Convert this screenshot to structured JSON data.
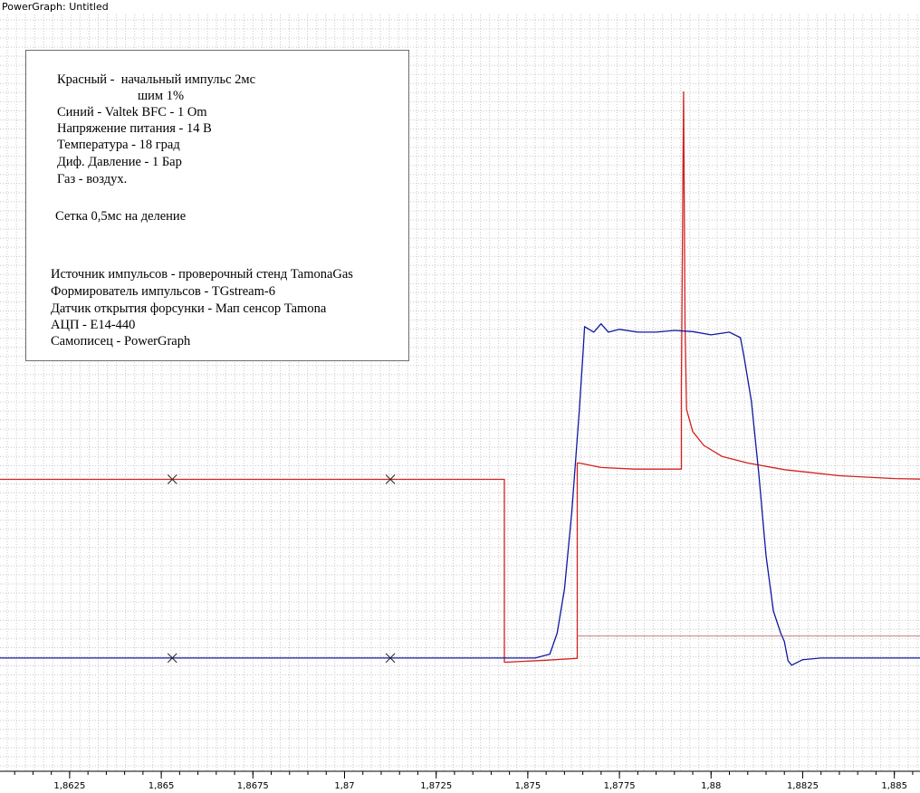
{
  "window": {
    "title": "PowerGraph: Untitled"
  },
  "notes": {
    "lines": [
      "Красный -  начальный импульс 2мс",
      "шим 1%",
      "Синий - Valtek BFC - 1 Om",
      "Напряжение питания - 14 В",
      "Температура - 18 град",
      "Диф. Давление - 1 Бар",
      "Газ - воздух.",
      "Сетка 0,5мс на деление",
      "Источник импульсов - проверочный стенд TamonaGas",
      "Формирователь импульсов - TGstream-6",
      "Датчик открытия форсунки - Мап сенсор Tamona",
      "АЦП - E14-440",
      "Самописец - PowerGraph"
    ]
  },
  "chart_data": {
    "type": "line",
    "title": "",
    "xlabel": "",
    "ylabel": "",
    "xlim": [
      1.8606,
      1.8857
    ],
    "ylim": [
      -0.37,
      1.0
    ],
    "grid": true,
    "x_tick_values": [
      1.8625,
      1.865,
      1.8675,
      1.87,
      1.8725,
      1.875,
      1.8775,
      1.88,
      1.8825,
      1.885
    ],
    "x_tick_labels": [
      "1,8625",
      "1,865",
      "1,8675",
      "1,87",
      "1,8725",
      "1,875",
      "1,8775",
      "1,88",
      "1,8825",
      "1,885"
    ],
    "series": [
      {
        "color": "#d42020",
        "points": [
          [
            1.8606,
            0.1585
          ],
          [
            1.87436,
            0.1585
          ],
          [
            1.87436,
            -0.1725
          ],
          [
            1.87441,
            -0.1725
          ],
          [
            1.8755,
            -0.169
          ],
          [
            1.87635,
            -0.1655
          ],
          [
            1.87635,
            0.188
          ],
          [
            1.8764,
            0.188
          ],
          [
            1.877,
            0.18
          ],
          [
            1.8779,
            0.177
          ],
          [
            1.87919,
            0.177
          ],
          [
            1.87919,
            0.33
          ],
          [
            1.87925,
            0.86
          ],
          [
            1.87929,
            0.44
          ],
          [
            1.87933,
            0.285
          ],
          [
            1.8795,
            0.245
          ],
          [
            1.8798,
            0.22
          ],
          [
            1.8803,
            0.2
          ],
          [
            1.881,
            0.188
          ],
          [
            1.882,
            0.176
          ],
          [
            1.8835,
            0.165
          ],
          [
            1.885,
            0.16
          ],
          [
            1.8857,
            0.159
          ]
        ],
        "markers": [
          [
            1.8653,
            0.1585
          ],
          [
            1.87125,
            0.1585
          ]
        ]
      },
      {
        "color": "#1018a0",
        "points": [
          [
            1.8606,
            -0.165
          ],
          [
            1.8745,
            -0.165
          ],
          [
            1.8752,
            -0.165
          ],
          [
            1.8756,
            -0.158
          ],
          [
            1.8758,
            -0.12
          ],
          [
            1.876,
            -0.04
          ],
          [
            1.8762,
            0.1
          ],
          [
            1.8764,
            0.28
          ],
          [
            1.8765,
            0.38
          ],
          [
            1.87655,
            0.435
          ],
          [
            1.8768,
            0.425
          ],
          [
            1.877,
            0.44
          ],
          [
            1.8772,
            0.425
          ],
          [
            1.8775,
            0.43
          ],
          [
            1.878,
            0.425
          ],
          [
            1.8785,
            0.425
          ],
          [
            1.879,
            0.428
          ],
          [
            1.8795,
            0.426
          ],
          [
            1.88,
            0.42
          ],
          [
            1.8805,
            0.425
          ],
          [
            1.8808,
            0.415
          ],
          [
            1.8809,
            0.38
          ],
          [
            1.8811,
            0.3
          ],
          [
            1.8813,
            0.17
          ],
          [
            1.8815,
            0.02
          ],
          [
            1.8817,
            -0.08
          ],
          [
            1.8819,
            -0.12
          ],
          [
            1.882,
            -0.135
          ],
          [
            1.8821,
            -0.17
          ],
          [
            1.8822,
            -0.178
          ],
          [
            1.8825,
            -0.168
          ],
          [
            1.883,
            -0.165
          ],
          [
            1.885,
            -0.165
          ],
          [
            1.8857,
            -0.165
          ]
        ],
        "markers": [
          [
            1.8653,
            -0.165
          ],
          [
            1.87125,
            -0.165
          ]
        ]
      },
      {
        "color": "#b85a5a",
        "points": [
          [
            1.87635,
            -0.125
          ],
          [
            1.8857,
            -0.125
          ]
        ]
      }
    ]
  }
}
